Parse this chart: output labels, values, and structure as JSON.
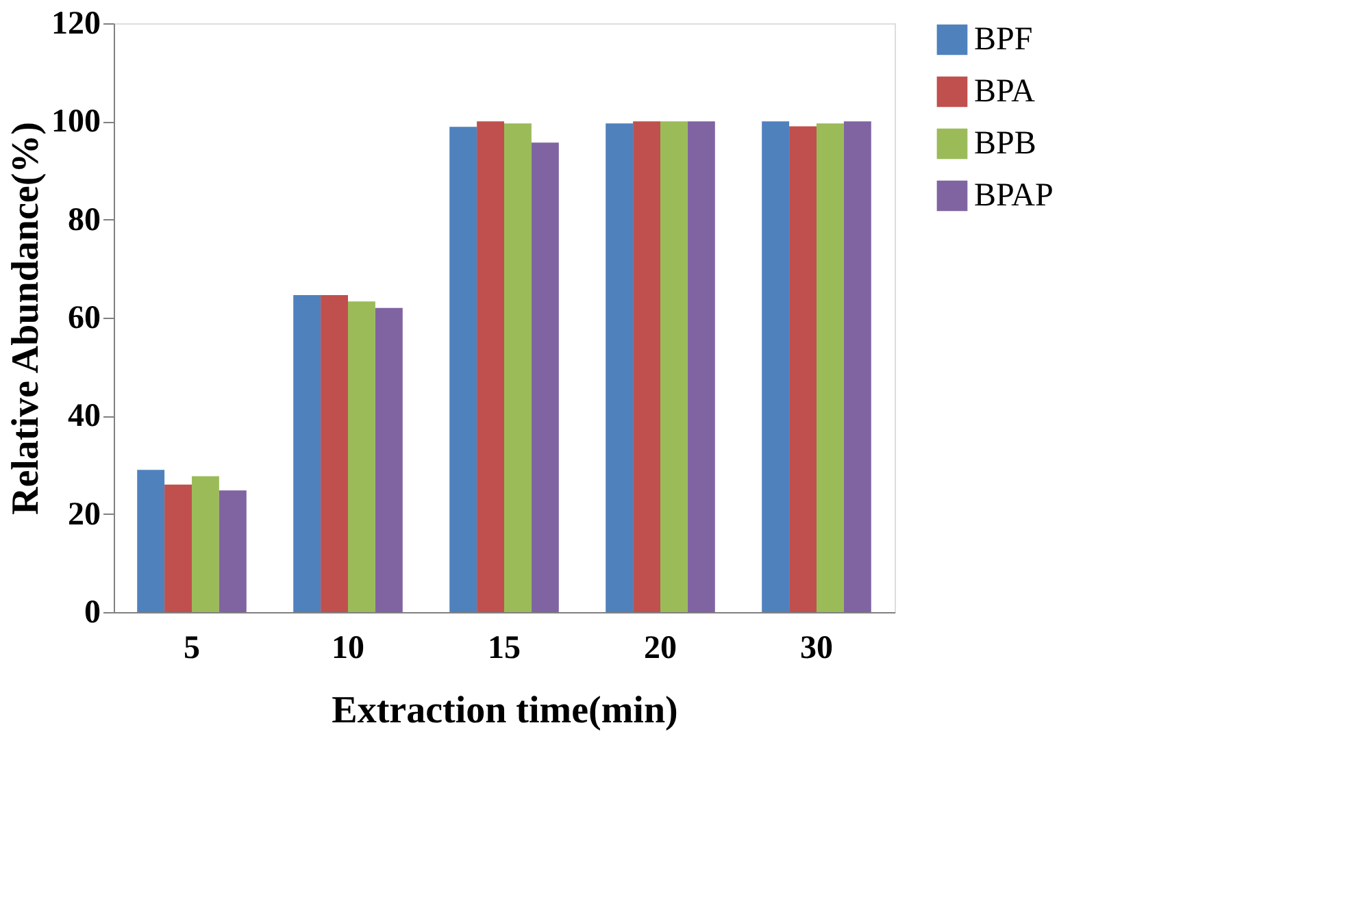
{
  "chart_data": {
    "type": "bar",
    "xlabel": "Extraction time(min)",
    "ylabel": "Relative Abundance(%)",
    "categories": [
      "5",
      "10",
      "15",
      "20",
      "30"
    ],
    "series": [
      {
        "name": "BPF",
        "color": "#4f81bd",
        "values": [
          29,
          64.6,
          98.9,
          99.6,
          100
        ]
      },
      {
        "name": "BPA",
        "color": "#c0504d",
        "values": [
          26,
          64.6,
          100,
          100,
          99
        ]
      },
      {
        "name": "BPB",
        "color": "#9bbb59",
        "values": [
          27.7,
          63.3,
          99.6,
          100,
          99.6
        ]
      },
      {
        "name": "BPAP",
        "color": "#8064a2",
        "values": [
          24.8,
          62,
          95.7,
          100,
          100
        ]
      }
    ],
    "ylim": [
      0,
      120
    ],
    "yticks": [
      0,
      20,
      40,
      60,
      80,
      100,
      120
    ],
    "grid": false,
    "legend": "right"
  }
}
